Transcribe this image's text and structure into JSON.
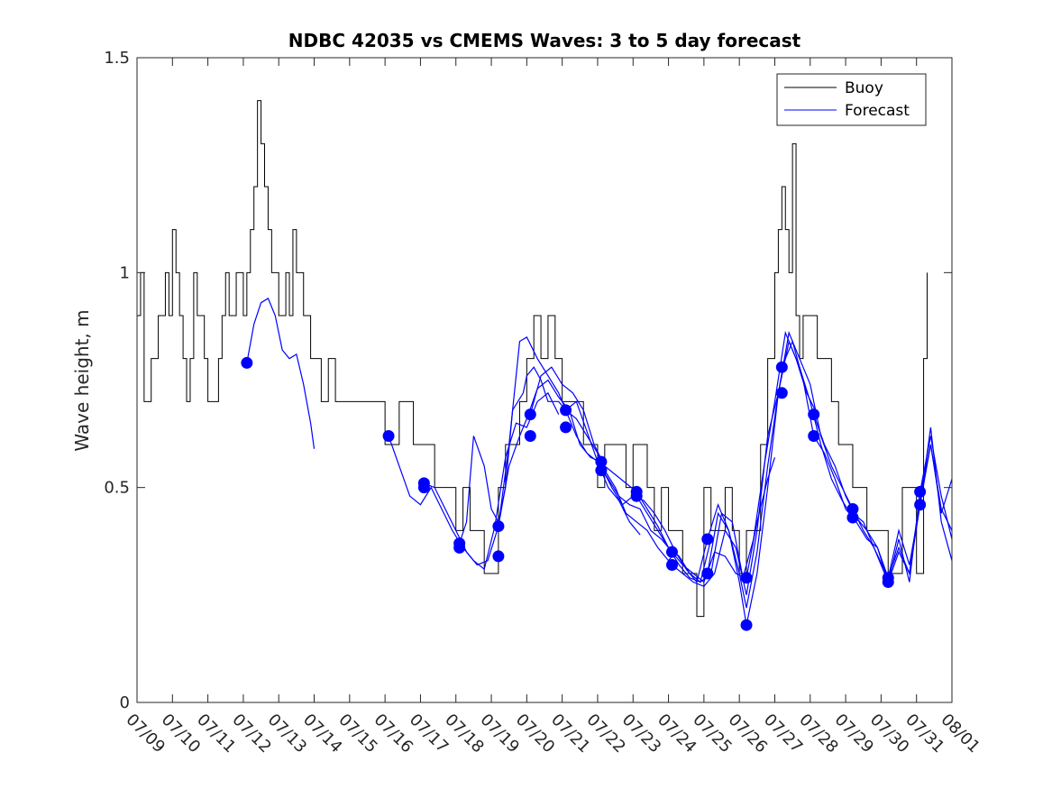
{
  "chart_data": {
    "type": "line",
    "title": "NDBC 42035 vs CMEMS Waves: 3 to 5 day forecast",
    "xlabel": "",
    "ylabel": "Wave height, m",
    "xlim": [
      "2025-07-09",
      "2025-08-01"
    ],
    "ylim": [
      0,
      1.5
    ],
    "x_tick_labels": [
      "07/09",
      "07/10",
      "07/11",
      "07/12",
      "07/13",
      "07/14",
      "07/15",
      "07/16",
      "07/17",
      "07/18",
      "07/19",
      "07/20",
      "07/21",
      "07/22",
      "07/23",
      "07/24",
      "07/25",
      "07/26",
      "07/27",
      "07/28",
      "07/29",
      "07/30",
      "07/31",
      "08/01"
    ],
    "y_ticks": [
      0,
      0.5,
      1,
      1.5
    ],
    "y_tick_labels": [
      "0",
      "0.5",
      "1",
      "1.5"
    ],
    "grid": false,
    "legend": {
      "placement": "top-right",
      "entries": [
        "Buoy",
        "Forecast"
      ]
    },
    "colors": {
      "buoy": "#000000",
      "forecast": "#0000ff",
      "axes": "#262626"
    },
    "series": [
      {
        "name": "Buoy",
        "color": "#000000",
        "x": [
          9.0,
          9.1,
          9.2,
          9.3,
          9.4,
          9.5,
          9.6,
          9.7,
          9.8,
          9.9,
          10.0,
          10.1,
          10.2,
          10.3,
          10.4,
          10.5,
          10.6,
          10.7,
          10.8,
          10.9,
          11.0,
          11.1,
          11.2,
          11.3,
          11.4,
          11.5,
          11.6,
          11.7,
          11.8,
          11.9,
          12.0,
          12.1,
          12.2,
          12.3,
          12.4,
          12.5,
          12.6,
          12.7,
          12.8,
          12.9,
          13.0,
          13.1,
          13.2,
          13.3,
          13.4,
          13.5,
          13.6,
          13.7,
          13.8,
          13.9,
          14.0,
          14.2,
          14.4,
          14.6,
          14.8,
          15.0,
          15.2,
          15.4,
          15.6,
          15.8,
          16.0,
          16.2,
          16.4,
          16.6,
          16.8,
          17.0,
          17.2,
          17.4,
          17.6,
          17.8,
          18.0,
          18.2,
          18.4,
          18.6,
          18.8,
          19.0,
          19.2,
          19.4,
          19.6,
          19.8,
          20.0,
          20.2,
          20.4,
          20.6,
          20.8,
          21.0,
          21.2,
          21.4,
          21.6,
          21.8,
          22.0,
          22.2,
          22.4,
          22.6,
          22.8,
          23.0,
          23.2,
          23.4,
          23.6,
          23.8,
          24.0,
          24.2,
          24.4,
          24.6,
          24.8,
          25.0,
          25.2,
          25.4,
          25.6,
          25.8,
          26.0,
          26.2,
          26.4,
          26.6,
          26.8,
          27.0,
          27.1,
          27.2,
          27.3,
          27.4,
          27.5,
          27.6,
          27.7,
          27.8,
          27.9,
          28.0,
          28.2,
          28.4,
          28.6,
          28.8,
          29.0,
          29.2,
          29.4,
          29.6,
          29.8,
          30.0,
          30.2,
          30.4,
          30.6,
          30.8,
          31.0,
          31.1,
          31.2,
          31.3
        ],
        "y": [
          0.9,
          1.0,
          0.7,
          0.7,
          0.8,
          0.8,
          0.9,
          0.9,
          1.0,
          0.9,
          1.1,
          1.0,
          0.9,
          0.8,
          0.7,
          0.8,
          1.0,
          0.9,
          0.9,
          0.8,
          0.7,
          0.7,
          0.7,
          0.8,
          0.9,
          1.0,
          0.9,
          0.9,
          1.0,
          1.0,
          0.9,
          1.0,
          1.1,
          1.2,
          1.4,
          1.3,
          1.2,
          1.1,
          1.0,
          1.0,
          0.9,
          0.9,
          1.0,
          0.9,
          1.1,
          1.0,
          1.0,
          0.9,
          0.9,
          0.8,
          0.8,
          0.7,
          0.8,
          0.7,
          0.7,
          0.7,
          0.7,
          0.7,
          0.7,
          0.7,
          0.6,
          0.6,
          0.7,
          0.7,
          0.6,
          0.6,
          0.6,
          0.5,
          0.5,
          0.5,
          0.4,
          0.5,
          0.4,
          0.4,
          0.3,
          0.3,
          0.5,
          0.6,
          0.6,
          0.7,
          0.8,
          0.9,
          0.8,
          0.9,
          0.8,
          0.7,
          0.7,
          0.7,
          0.6,
          0.6,
          0.5,
          0.6,
          0.6,
          0.6,
          0.5,
          0.6,
          0.6,
          0.5,
          0.4,
          0.5,
          0.4,
          0.4,
          0.3,
          0.3,
          0.2,
          0.5,
          0.4,
          0.4,
          0.5,
          0.4,
          0.3,
          0.4,
          0.4,
          0.6,
          0.8,
          1.0,
          1.1,
          1.2,
          1.1,
          1.0,
          1.3,
          0.9,
          0.8,
          0.9,
          0.9,
          0.9,
          0.8,
          0.8,
          0.7,
          0.6,
          0.6,
          0.5,
          0.5,
          0.4,
          0.4,
          0.4,
          0.3,
          0.3,
          0.5,
          0.5,
          0.3,
          0.3,
          0.8,
          1.0
        ]
      },
      {
        "name": "Forecast",
        "color": "#0000ff",
        "x": [
          12.1,
          12.3,
          12.5,
          12.7,
          12.9,
          13.1,
          13.3,
          13.5,
          13.7,
          13.9,
          14.0
        ],
        "y": [
          0.79,
          0.88,
          0.93,
          0.94,
          0.9,
          0.82,
          0.8,
          0.81,
          0.74,
          0.65,
          0.59
        ]
      },
      {
        "color": "#0000ff",
        "x": [
          16.1,
          16.4,
          16.7,
          17.0,
          17.3,
          17.6,
          17.9,
          18.2,
          18.5,
          18.8,
          19.1,
          19.4,
          19.7,
          20.0,
          20.3,
          20.6,
          20.9
        ],
        "y": [
          0.62,
          0.55,
          0.48,
          0.46,
          0.5,
          0.45,
          0.4,
          0.36,
          0.33,
          0.31,
          0.41,
          0.57,
          0.65,
          0.64,
          0.7,
          0.72,
          0.67
        ]
      },
      {
        "color": "#0000ff",
        "x": [
          17.1,
          17.4,
          17.7,
          18.0,
          18.3,
          18.6,
          18.9,
          19.2,
          19.5,
          19.8,
          20.0,
          20.3,
          20.6,
          20.9,
          21.2,
          21.5,
          21.8,
          22.1
        ],
        "y": [
          0.51,
          0.5,
          0.45,
          0.4,
          0.35,
          0.32,
          0.33,
          0.41,
          0.55,
          0.62,
          0.66,
          0.73,
          0.75,
          0.71,
          0.68,
          0.6,
          0.57,
          0.56
        ]
      },
      {
        "color": "#0000ff",
        "x": [
          18.1,
          18.3,
          18.5,
          18.8,
          19.0,
          19.2,
          19.4,
          19.6,
          19.9,
          20.0,
          20.2,
          20.4,
          20.6,
          20.9,
          21.1,
          21.4,
          21.7,
          22.0,
          22.3,
          22.6,
          22.9,
          23.2
        ],
        "y": [
          0.37,
          0.42,
          0.62,
          0.55,
          0.45,
          0.42,
          0.5,
          0.68,
          0.72,
          0.76,
          0.78,
          0.75,
          0.7,
          0.7,
          0.68,
          0.62,
          0.58,
          0.56,
          0.5,
          0.47,
          0.42,
          0.39
        ]
      },
      {
        "color": "#0000ff",
        "x": [
          19.2,
          19.5,
          19.8,
          20.0,
          20.3,
          20.6,
          20.9,
          21.1,
          21.4,
          21.7,
          22.0,
          22.2,
          22.5,
          22.8,
          23.1,
          23.4,
          23.7,
          24.0,
          24.2
        ],
        "y": [
          0.41,
          0.6,
          0.84,
          0.85,
          0.8,
          0.76,
          0.72,
          0.68,
          0.66,
          0.62,
          0.58,
          0.54,
          0.5,
          0.44,
          0.42,
          0.4,
          0.36,
          0.33,
          0.35
        ]
      },
      {
        "color": "#0000ff",
        "x": [
          20.1,
          20.4,
          20.7,
          21.0,
          21.3,
          21.6,
          21.9,
          22.2,
          22.5,
          22.8,
          23.1,
          23.4,
          23.7,
          24.0,
          24.3,
          24.6,
          24.9,
          25.2
        ],
        "y": [
          0.67,
          0.76,
          0.78,
          0.74,
          0.72,
          0.68,
          0.6,
          0.55,
          0.53,
          0.51,
          0.49,
          0.45,
          0.41,
          0.36,
          0.34,
          0.3,
          0.28,
          0.38
        ]
      },
      {
        "color": "#0000ff",
        "x": [
          21.1,
          21.4,
          21.7,
          22.0,
          22.3,
          22.6,
          22.9,
          23.2,
          23.5,
          23.8,
          24.1,
          24.4,
          24.7,
          25.0,
          25.3,
          25.6,
          25.9,
          26.2
        ],
        "y": [
          0.68,
          0.7,
          0.63,
          0.56,
          0.52,
          0.48,
          0.46,
          0.45,
          0.4,
          0.38,
          0.35,
          0.32,
          0.3,
          0.28,
          0.35,
          0.34,
          0.3,
          0.29
        ]
      },
      {
        "color": "#0000ff",
        "x": [
          22.1,
          22.4,
          22.7,
          23.0,
          23.3,
          23.6,
          23.9,
          24.2,
          24.5,
          24.8,
          25.1,
          25.4,
          25.7,
          26.0,
          26.2,
          26.5,
          26.8,
          27.1
        ],
        "y": [
          0.55,
          0.5,
          0.46,
          0.48,
          0.47,
          0.44,
          0.4,
          0.35,
          0.31,
          0.28,
          0.38,
          0.46,
          0.4,
          0.3,
          0.22,
          0.35,
          0.55,
          0.72
        ]
      },
      {
        "color": "#0000ff",
        "x": [
          23.1,
          23.4,
          23.7,
          24.0,
          24.3,
          24.6,
          24.9,
          25.2,
          25.5,
          25.8,
          26.1,
          26.4,
          26.7,
          27.0,
          27.3,
          27.6,
          27.9,
          28.2
        ],
        "y": [
          0.48,
          0.44,
          0.4,
          0.36,
          0.32,
          0.29,
          0.28,
          0.3,
          0.44,
          0.42,
          0.29,
          0.38,
          0.55,
          0.7,
          0.86,
          0.8,
          0.72,
          0.67
        ]
      },
      {
        "color": "#0000ff",
        "x": [
          24.1,
          24.4,
          24.7,
          25.0,
          25.3,
          25.6,
          25.9,
          26.2,
          26.5,
          26.8,
          27.1,
          27.4,
          27.7,
          28.0,
          28.3,
          28.6,
          28.9,
          29.2
        ],
        "y": [
          0.32,
          0.3,
          0.28,
          0.27,
          0.3,
          0.4,
          0.36,
          0.25,
          0.4,
          0.62,
          0.72,
          0.84,
          0.78,
          0.7,
          0.6,
          0.52,
          0.47,
          0.43
        ]
      },
      {
        "color": "#0000ff",
        "x": [
          25.1,
          25.4,
          25.7,
          26.0,
          26.2,
          26.5,
          26.8,
          27.1,
          27.4,
          27.7,
          28.0,
          28.3,
          28.6,
          28.9,
          29.2,
          29.5,
          29.8,
          30.2
        ],
        "y": [
          0.3,
          0.44,
          0.4,
          0.28,
          0.18,
          0.3,
          0.5,
          0.72,
          0.86,
          0.8,
          0.74,
          0.62,
          0.55,
          0.5,
          0.45,
          0.4,
          0.36,
          0.29
        ]
      },
      {
        "color": "#0000ff",
        "x": [
          26.2,
          26.5,
          26.8,
          27.0
        ],
        "y": [
          0.29,
          0.42,
          0.52,
          0.57
        ]
      },
      {
        "color": "#0000ff",
        "x": [
          27.2,
          27.5,
          27.8,
          28.1,
          28.4,
          28.7,
          29.0,
          29.3,
          29.6,
          29.9,
          30.2,
          30.5,
          30.8,
          31.1,
          31.4,
          31.7,
          32.0
        ],
        "y": [
          0.78,
          0.84,
          0.75,
          0.62,
          0.58,
          0.52,
          0.45,
          0.42,
          0.38,
          0.36,
          0.28,
          0.35,
          0.3,
          0.48,
          0.6,
          0.45,
          0.4
        ]
      },
      {
        "color": "#0000ff",
        "x": [
          28.1,
          28.4,
          28.7,
          29.0,
          29.3,
          29.6,
          29.9,
          30.2,
          30.5,
          30.8,
          31.1,
          31.4,
          31.7,
          32.0
        ],
        "y": [
          0.67,
          0.6,
          0.55,
          0.48,
          0.43,
          0.4,
          0.36,
          0.29,
          0.4,
          0.32,
          0.46,
          0.64,
          0.42,
          0.33
        ]
      },
      {
        "color": "#0000ff",
        "x": [
          29.2,
          29.5,
          29.8,
          30.2,
          30.5,
          30.8,
          31.1,
          31.4,
          31.7,
          32.0
        ],
        "y": [
          0.44,
          0.42,
          0.36,
          0.28,
          0.38,
          0.28,
          0.49,
          0.62,
          0.48,
          0.38
        ]
      },
      {
        "color": "#0000ff",
        "x": [
          30.2,
          30.5,
          30.8,
          31.1,
          31.4,
          31.7,
          32.0
        ],
        "y": [
          0.29,
          0.36,
          0.3,
          0.46,
          0.6,
          0.44,
          0.52
        ]
      }
    ],
    "markers": {
      "color": "#0000ff",
      "x": [
        12.1,
        16.1,
        17.1,
        17.1,
        18.1,
        18.1,
        19.2,
        19.2,
        20.1,
        20.1,
        21.1,
        21.1,
        22.1,
        22.1,
        23.1,
        23.1,
        24.1,
        24.1,
        25.1,
        25.1,
        26.2,
        26.2,
        27.2,
        27.2,
        28.1,
        28.1,
        29.2,
        29.2,
        30.2,
        30.2,
        31.1,
        31.1
      ],
      "y": [
        0.79,
        0.62,
        0.51,
        0.5,
        0.37,
        0.36,
        0.41,
        0.34,
        0.67,
        0.62,
        0.68,
        0.64,
        0.56,
        0.54,
        0.49,
        0.48,
        0.35,
        0.32,
        0.38,
        0.3,
        0.29,
        0.18,
        0.78,
        0.72,
        0.67,
        0.62,
        0.45,
        0.43,
        0.29,
        0.28,
        0.49,
        0.46
      ]
    }
  }
}
